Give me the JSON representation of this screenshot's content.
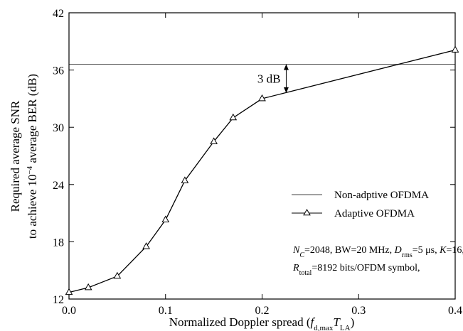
{
  "chart_data": {
    "type": "line",
    "xlabel": {
      "prefix": "Normalized Doppler spread (",
      "f": "f",
      "f_sub": "d,max",
      "T": "T",
      "T_sub": "LA",
      "suffix": ")"
    },
    "ylabel": {
      "line1": "Required average SNR",
      "line2_pre": "to achieve 10",
      "line2_sup": "−4",
      "line2_post": " average BER (dB)"
    },
    "xlim": [
      0,
      0.4
    ],
    "ylim": [
      12,
      42
    ],
    "x_ticks": [
      0.0,
      0.1,
      0.2,
      0.3,
      0.4
    ],
    "x_tick_labels": [
      "0.0",
      "0.1",
      "0.2",
      "0.3",
      "0.4"
    ],
    "y_ticks": [
      12,
      18,
      24,
      30,
      36,
      42
    ],
    "y_tick_labels": [
      "12",
      "18",
      "24",
      "30",
      "36",
      "42"
    ],
    "grid": false,
    "series": [
      {
        "name": "Non-adptive OFDMA",
        "style": "thin-line",
        "x": [
          0.0,
          0.4
        ],
        "y": [
          36.6,
          36.6
        ]
      },
      {
        "name": "Adaptive OFDMA",
        "style": "line-triangle",
        "x": [
          0.0,
          0.02,
          0.05,
          0.08,
          0.1,
          0.12,
          0.15,
          0.17,
          0.2,
          0.4
        ],
        "y": [
          12.7,
          13.2,
          14.4,
          17.5,
          20.3,
          24.4,
          28.5,
          31.0,
          33.0,
          38.1
        ]
      }
    ],
    "legend_position": "right",
    "annotation": {
      "label": "3 dB",
      "x": 0.225,
      "y_from": 33.6,
      "y_to": 36.6
    },
    "params": {
      "line1": {
        "n": "N",
        "n_sub": "C",
        "a": "=2048, BW=20 MHz, ",
        "d": "D",
        "d_sub": "rms",
        "b": "=5 μs, ",
        "k": "K",
        "c": "=16,"
      },
      "line2": {
        "r": "R",
        "r_sub": "total",
        "a": "=8192 bits/OFDM symbol,"
      }
    },
    "colors": {
      "lines": "#000000",
      "background": "#ffffff"
    }
  }
}
